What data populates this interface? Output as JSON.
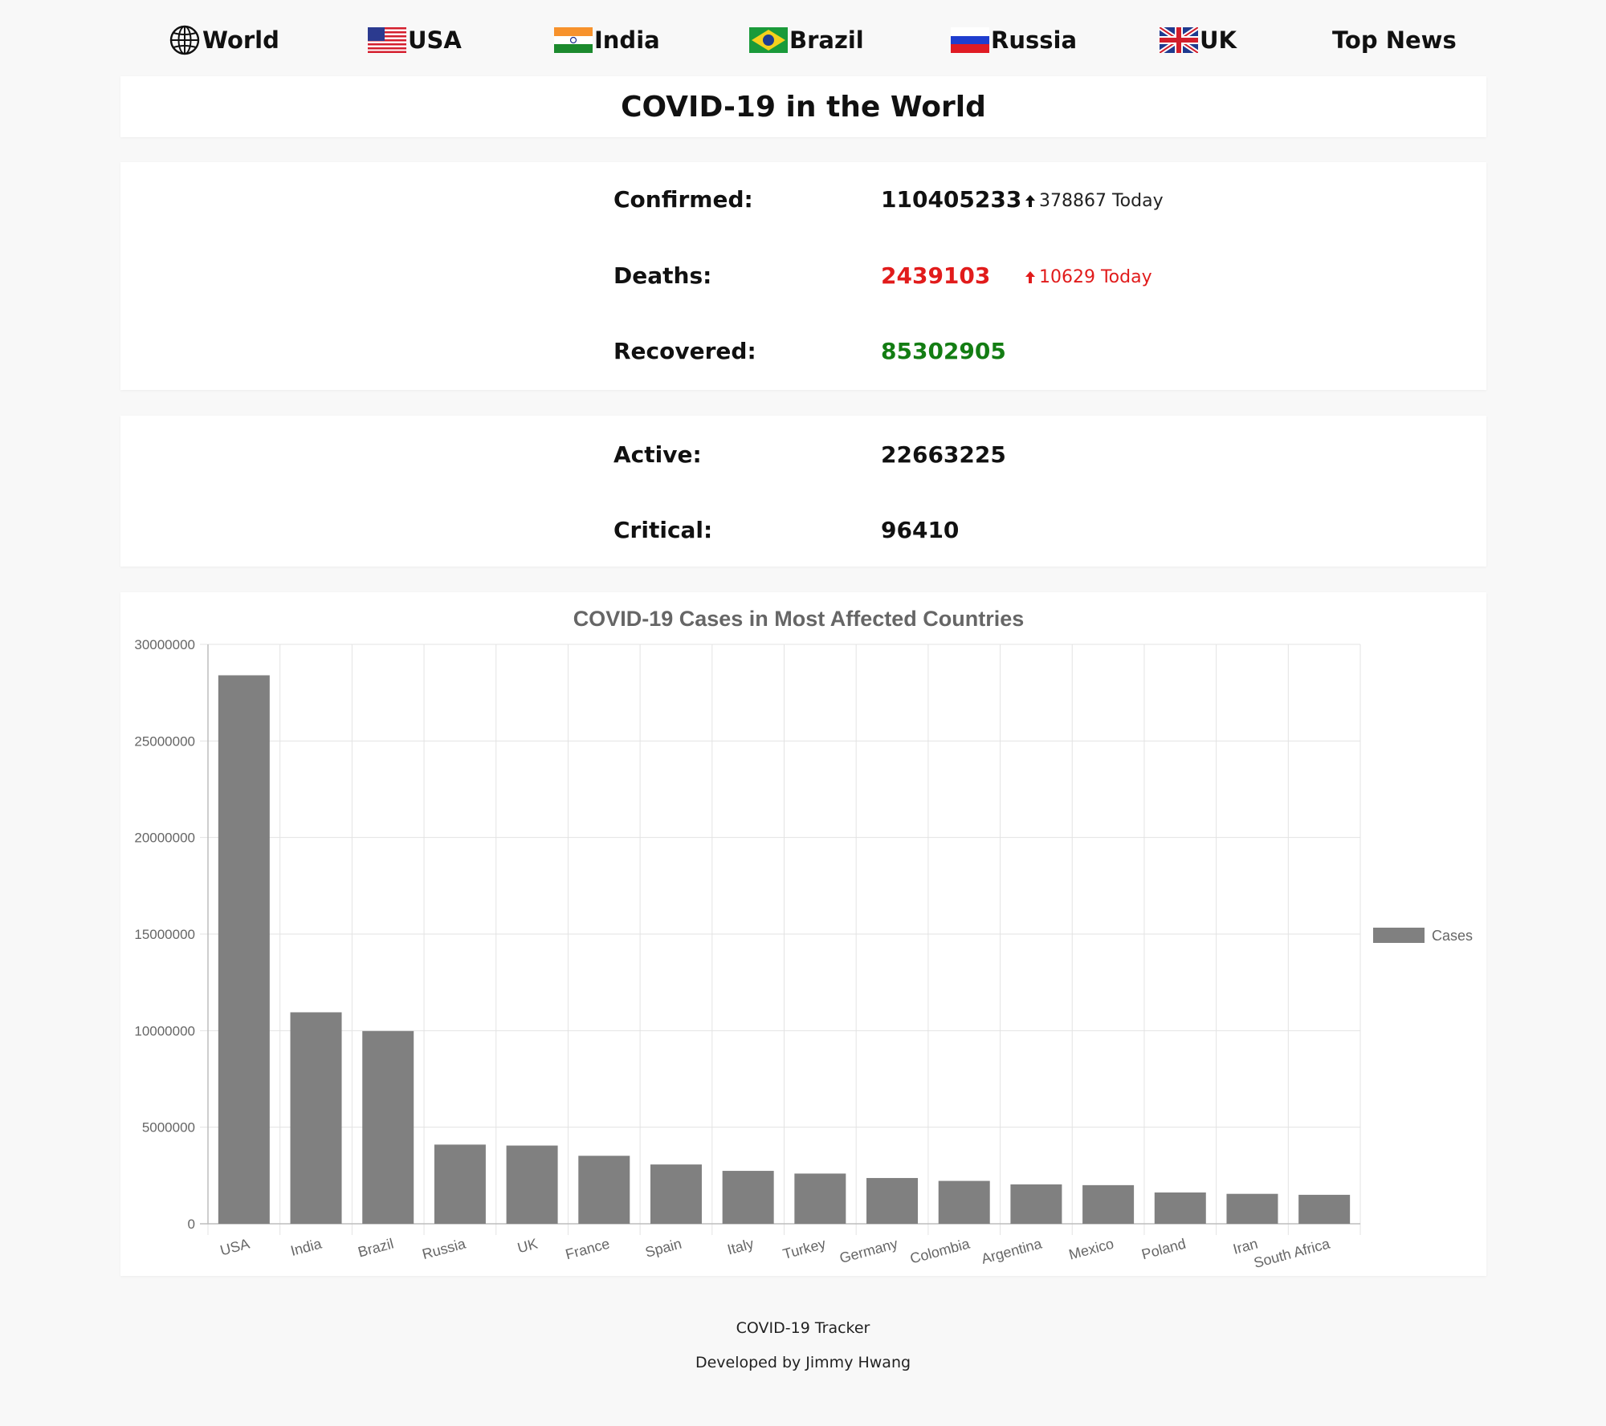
{
  "nav": {
    "items": [
      {
        "label": "World",
        "icon": "globe-icon"
      },
      {
        "label": "USA",
        "icon": "usa-flag-icon"
      },
      {
        "label": "India",
        "icon": "india-flag-icon"
      },
      {
        "label": "Brazil",
        "icon": "brazil-flag-icon"
      },
      {
        "label": "Russia",
        "icon": "russia-flag-icon"
      },
      {
        "label": "UK",
        "icon": "uk-flag-icon"
      },
      {
        "label": "Top News"
      }
    ]
  },
  "header": {
    "title": "COVID-19 in the World"
  },
  "stats": {
    "confirmed": {
      "label": "Confirmed:",
      "value": "110405233",
      "delta": "378867 Today"
    },
    "deaths": {
      "label": "Deaths:",
      "value": "2439103",
      "delta": "10629 Today"
    },
    "recovered": {
      "label": "Recovered:",
      "value": "85302905"
    },
    "active": {
      "label": "Active:",
      "value": "22663225"
    },
    "critical": {
      "label": "Critical:",
      "value": "96410"
    }
  },
  "colors": {
    "deaths": "#e11b1b",
    "recovered": "#137d13",
    "bar": "#808080"
  },
  "chart_data": {
    "type": "bar",
    "title": "COVID-19 Cases in Most Affected Countries",
    "categories": [
      "USA",
      "India",
      "Brazil",
      "Russia",
      "UK",
      "France",
      "Spain",
      "Italy",
      "Turkey",
      "Germany",
      "Colombia",
      "Argentina",
      "Mexico",
      "Poland",
      "Iran",
      "South Africa"
    ],
    "series": [
      {
        "name": "Cases",
        "values": [
          28400000,
          10950000,
          9980000,
          4100000,
          4050000,
          3520000,
          3070000,
          2740000,
          2600000,
          2370000,
          2220000,
          2040000,
          2000000,
          1620000,
          1550000,
          1500000
        ]
      }
    ],
    "ylim": [
      0,
      30000000
    ],
    "yticks": [
      0,
      5000000,
      10000000,
      15000000,
      20000000,
      25000000,
      30000000
    ],
    "ytick_labels": [
      "0",
      "5000000",
      "10000000",
      "15000000",
      "20000000",
      "25000000",
      "30000000"
    ],
    "grid": true,
    "legend_position": "right"
  },
  "footer": {
    "line1": "COVID-19 Tracker",
    "line2": "Developed by Jimmy Hwang"
  }
}
